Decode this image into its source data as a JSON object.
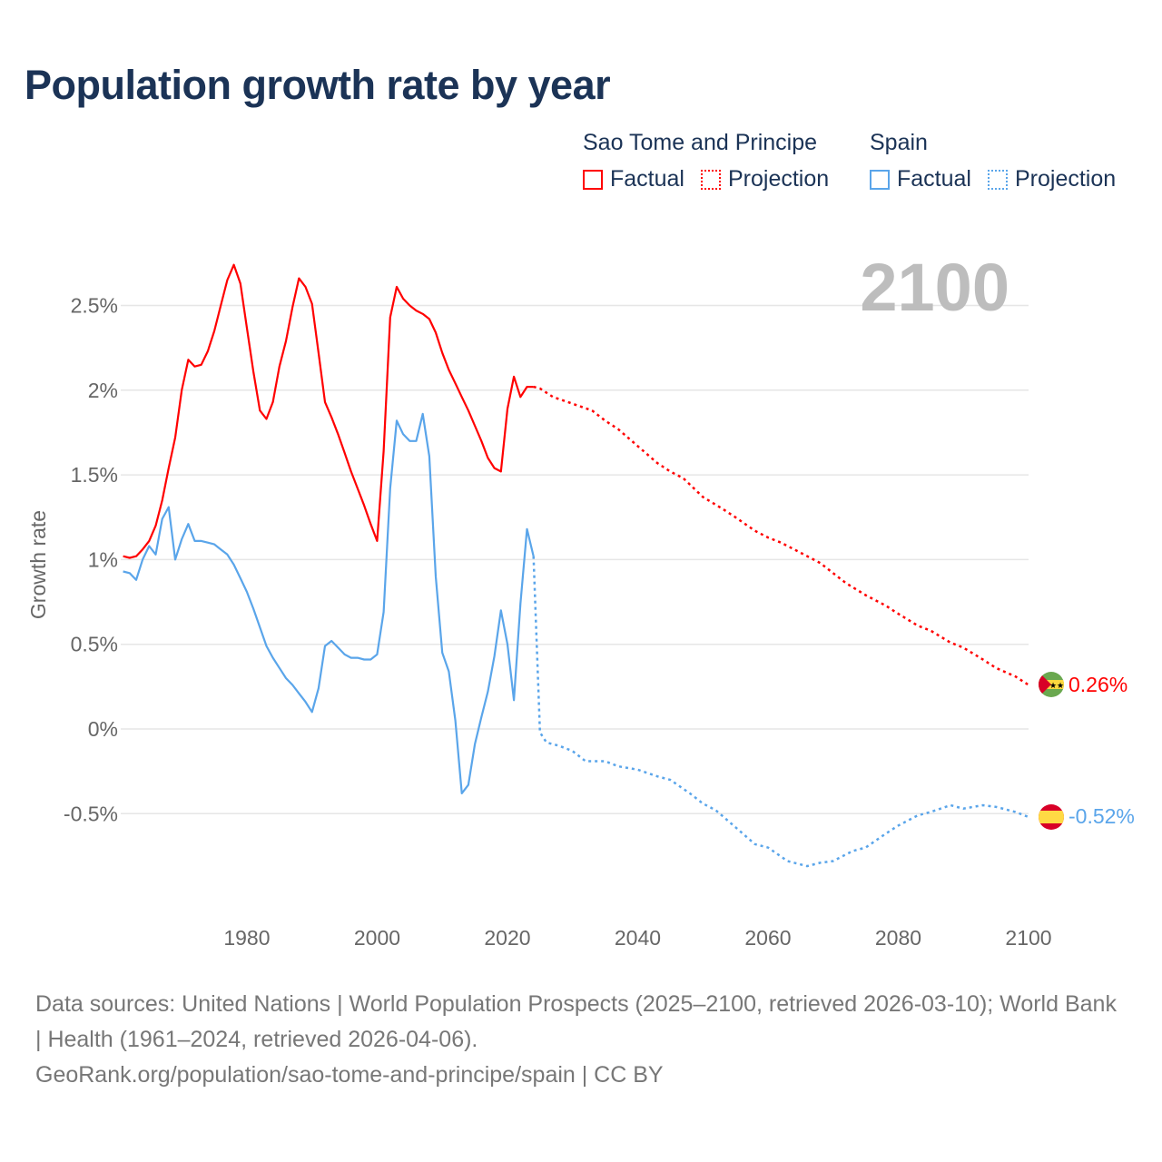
{
  "title": "Population growth rate by year",
  "legend": {
    "groups": [
      {
        "name": "Sao Tome and Principe",
        "factual": "Factual",
        "projection": "Projection",
        "color": "#ff0000"
      },
      {
        "name": "Spain",
        "factual": "Factual",
        "projection": "Projection",
        "color": "#5aa5ea"
      }
    ]
  },
  "year_display": "2100",
  "footer": {
    "sources": "Data sources: United Nations | World Population Prospects (2025–2100, retrieved 2026-03-10); World Bank | Health (1961–2024, retrieved 2026-04-06).",
    "credit": "GeoRank.org/population/sao-tome-and-principe/spain | CC BY"
  },
  "chart_data": {
    "type": "line",
    "title": "Population growth rate by year",
    "xlabel": "",
    "ylabel": "Growth rate",
    "xlim": [
      1961,
      2100
    ],
    "ylim": [
      -1.0,
      2.8
    ],
    "x_ticks": [
      1980,
      2000,
      2020,
      2040,
      2060,
      2080,
      2100
    ],
    "x_tick_labels": [
      "1980",
      "2000",
      "2020",
      "2040",
      "2060",
      "2080",
      "2100"
    ],
    "y_ticks": [
      -0.5,
      0,
      0.5,
      1,
      1.5,
      2,
      2.5
    ],
    "y_tick_labels": [
      "-0.5%",
      "0%",
      "0.5%",
      "1%",
      "1.5%",
      "2%",
      "2.5%"
    ],
    "grid": true,
    "legend_position": "top-right",
    "series": [
      {
        "name": "Sao Tome and Principe",
        "color": "#ff0000",
        "end_label": "0.26%",
        "factual": {
          "x_start": 1961,
          "values": [
            1.02,
            1.01,
            1.02,
            1.06,
            1.11,
            1.2,
            1.35,
            1.54,
            1.72,
            2.0,
            2.18,
            2.14,
            2.15,
            2.23,
            2.35,
            2.5,
            2.65,
            2.74,
            2.63,
            2.37,
            2.11,
            1.88,
            1.83,
            1.93,
            2.14,
            2.29,
            2.49,
            2.66,
            2.61,
            2.51,
            2.22,
            1.93,
            1.84,
            1.74,
            1.63,
            1.52,
            1.42,
            1.32,
            1.21,
            1.11,
            1.64,
            2.43,
            2.61,
            2.54,
            2.5,
            2.47,
            2.45,
            2.42,
            2.34,
            2.22,
            2.12,
            2.04,
            1.96,
            1.88,
            1.79,
            1.7,
            1.6,
            1.54,
            1.52,
            1.89,
            2.08,
            1.96,
            2.02,
            2.02
          ]
        },
        "projection": {
          "points": [
            [
              2024,
              2.02
            ],
            [
              2025,
              2.01
            ],
            [
              2027,
              1.96
            ],
            [
              2030,
              1.92
            ],
            [
              2033,
              1.88
            ],
            [
              2035,
              1.82
            ],
            [
              2037,
              1.77
            ],
            [
              2040,
              1.67
            ],
            [
              2043,
              1.57
            ],
            [
              2045,
              1.52
            ],
            [
              2047,
              1.48
            ],
            [
              2050,
              1.37
            ],
            [
              2053,
              1.3
            ],
            [
              2055,
              1.25
            ],
            [
              2058,
              1.17
            ],
            [
              2060,
              1.13
            ],
            [
              2062,
              1.1
            ],
            [
              2065,
              1.04
            ],
            [
              2068,
              0.98
            ],
            [
              2070,
              0.92
            ],
            [
              2072,
              0.86
            ],
            [
              2075,
              0.79
            ],
            [
              2078,
              0.73
            ],
            [
              2080,
              0.68
            ],
            [
              2083,
              0.61
            ],
            [
              2085,
              0.58
            ],
            [
              2088,
              0.51
            ],
            [
              2090,
              0.48
            ],
            [
              2093,
              0.41
            ],
            [
              2095,
              0.36
            ],
            [
              2098,
              0.31
            ],
            [
              2100,
              0.26
            ]
          ]
        }
      },
      {
        "name": "Spain",
        "color": "#5aa5ea",
        "end_label": "-0.52%",
        "factual": {
          "x_start": 1961,
          "values": [
            0.93,
            0.92,
            0.88,
            1.0,
            1.08,
            1.03,
            1.24,
            1.31,
            1.0,
            1.12,
            1.21,
            1.11,
            1.11,
            1.1,
            1.09,
            1.06,
            1.03,
            0.97,
            0.89,
            0.81,
            0.71,
            0.6,
            0.49,
            0.42,
            0.36,
            0.3,
            0.26,
            0.21,
            0.16,
            0.1,
            0.24,
            0.49,
            0.52,
            0.48,
            0.44,
            0.42,
            0.42,
            0.41,
            0.41,
            0.44,
            0.69,
            1.42,
            1.82,
            1.74,
            1.7,
            1.7,
            1.86,
            1.61,
            0.9,
            0.45,
            0.34,
            0.05,
            -0.38,
            -0.33,
            -0.09,
            0.07,
            0.22,
            0.43,
            0.7,
            0.5,
            0.17,
            0.74,
            1.18,
            1.02
          ]
        },
        "projection": {
          "points": [
            [
              2024,
              1.02
            ],
            [
              2025,
              -0.02
            ],
            [
              2026,
              -0.08
            ],
            [
              2028,
              -0.1
            ],
            [
              2030,
              -0.13
            ],
            [
              2032,
              -0.19
            ],
            [
              2035,
              -0.19
            ],
            [
              2037,
              -0.22
            ],
            [
              2040,
              -0.24
            ],
            [
              2043,
              -0.28
            ],
            [
              2045,
              -0.3
            ],
            [
              2048,
              -0.38
            ],
            [
              2050,
              -0.44
            ],
            [
              2052,
              -0.48
            ],
            [
              2055,
              -0.58
            ],
            [
              2058,
              -0.68
            ],
            [
              2060,
              -0.7
            ],
            [
              2063,
              -0.78
            ],
            [
              2066,
              -0.81
            ],
            [
              2068,
              -0.79
            ],
            [
              2070,
              -0.78
            ],
            [
              2073,
              -0.72
            ],
            [
              2075,
              -0.7
            ],
            [
              2078,
              -0.62
            ],
            [
              2080,
              -0.57
            ],
            [
              2083,
              -0.51
            ],
            [
              2085,
              -0.49
            ],
            [
              2088,
              -0.45
            ],
            [
              2090,
              -0.47
            ],
            [
              2093,
              -0.45
            ],
            [
              2095,
              -0.46
            ],
            [
              2098,
              -0.49
            ],
            [
              2100,
              -0.52
            ]
          ]
        }
      }
    ]
  }
}
